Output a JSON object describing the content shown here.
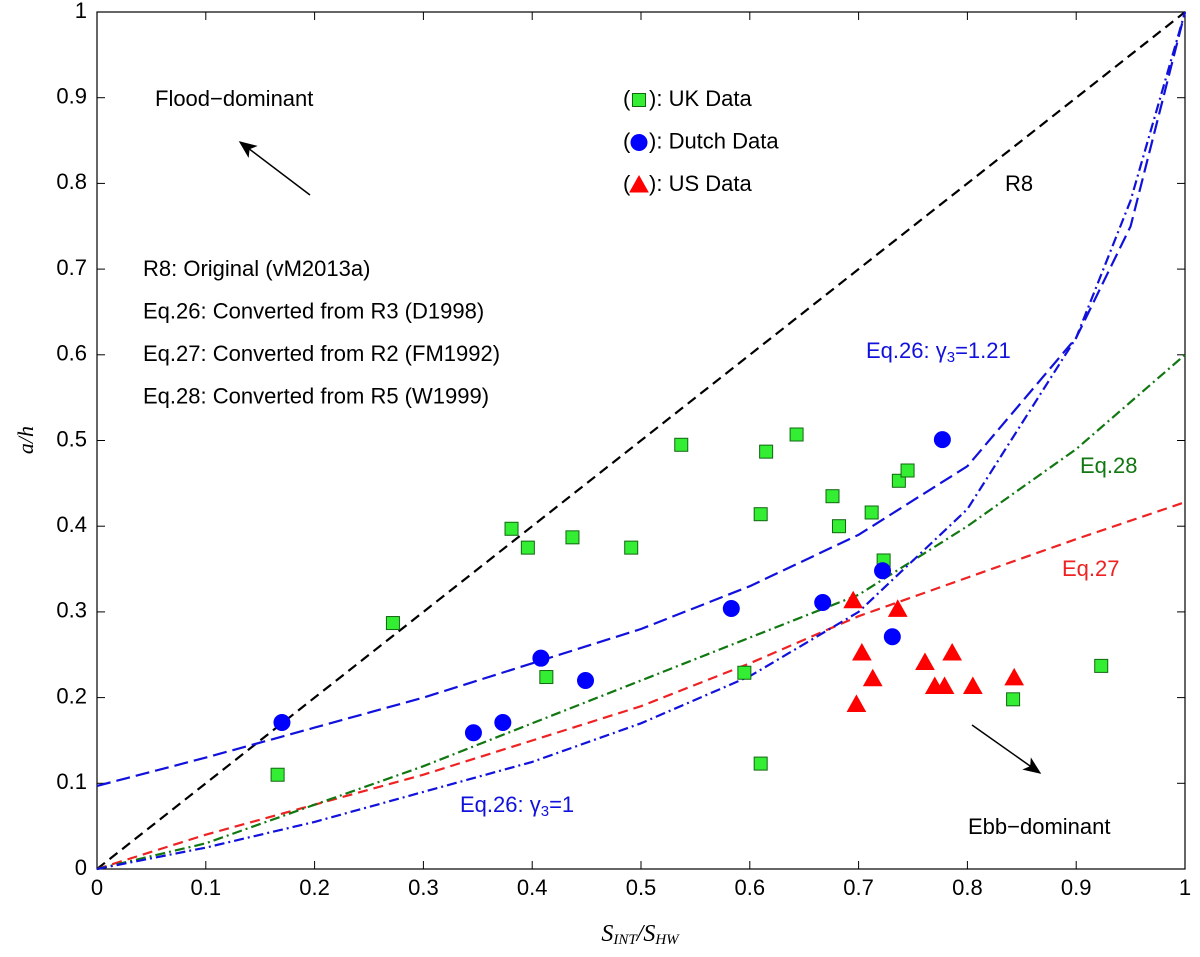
{
  "chart_data": {
    "type": "scatter",
    "xlabel": [
      "S",
      "INT",
      "/S",
      "HW"
    ],
    "ylabel": "a/h",
    "xlim": [
      0,
      1
    ],
    "ylim": [
      0,
      1
    ],
    "xticks": [
      0,
      0.1,
      0.2,
      0.3,
      0.4,
      0.5,
      0.6,
      0.7,
      0.8,
      0.9,
      1
    ],
    "yticks": [
      0,
      0.1,
      0.2,
      0.3,
      0.4,
      0.5,
      0.6,
      0.7,
      0.8,
      0.9,
      1
    ],
    "legend_brackets": [
      "(",
      "): "
    ],
    "series": [
      {
        "name": "UK Data",
        "marker": "square",
        "color": "#33ee33",
        "x": [
          0.166,
          0.272,
          0.381,
          0.396,
          0.437,
          0.491,
          0.537,
          0.615,
          0.643,
          0.676,
          0.682,
          0.712,
          0.737,
          0.745,
          0.61,
          0.723,
          0.413,
          0.595,
          0.61,
          0.842,
          0.923
        ],
        "values": [
          0.11,
          0.287,
          0.397,
          0.375,
          0.387,
          0.375,
          0.495,
          0.487,
          0.507,
          0.435,
          0.4,
          0.416,
          0.453,
          0.465,
          0.414,
          0.36,
          0.224,
          0.229,
          0.123,
          0.198,
          0.237
        ]
      },
      {
        "name": "Dutch Data",
        "marker": "circle",
        "color": "#0000ff",
        "x": [
          0.17,
          0.346,
          0.373,
          0.408,
          0.449,
          0.583,
          0.667,
          0.722,
          0.731,
          0.777
        ],
        "values": [
          0.171,
          0.159,
          0.171,
          0.246,
          0.22,
          0.304,
          0.311,
          0.348,
          0.271,
          0.501
        ]
      },
      {
        "name": "US Data",
        "marker": "triangle",
        "color": "#ff0000",
        "x": [
          0.695,
          0.736,
          0.703,
          0.713,
          0.698,
          0.761,
          0.786,
          0.77,
          0.779,
          0.805,
          0.843
        ],
        "values": [
          0.313,
          0.303,
          0.252,
          0.222,
          0.192,
          0.241,
          0.252,
          0.213,
          0.213,
          0.213,
          0.223
        ]
      }
    ],
    "lines": [
      {
        "color": "#000000",
        "dash": "10 6",
        "x": [
          0,
          1
        ],
        "values": [
          0,
          1
        ]
      },
      {
        "color": "#ee2222",
        "dash": "10 6",
        "x": [
          0,
          0.1,
          0.2,
          0.3,
          0.4,
          0.5,
          0.6,
          0.7,
          0.8,
          0.9,
          1
        ],
        "values": [
          0,
          0.04,
          0.075,
          0.11,
          0.15,
          0.19,
          0.24,
          0.295,
          0.34,
          0.385,
          0.428
        ]
      },
      {
        "color": "#117711",
        "dash": "10 4 2 4",
        "x": [
          0,
          0.1,
          0.2,
          0.3,
          0.4,
          0.5,
          0.6,
          0.7,
          0.8,
          0.9,
          1
        ],
        "values": [
          0,
          0.03,
          0.075,
          0.12,
          0.17,
          0.22,
          0.27,
          0.32,
          0.4,
          0.49,
          0.6
        ]
      },
      {
        "color": "#1111dd",
        "dash": "14 6",
        "x": [
          0,
          0.1,
          0.2,
          0.3,
          0.4,
          0.5,
          0.6,
          0.7,
          0.8,
          0.9,
          0.95,
          1
        ],
        "values": [
          0.097,
          0.13,
          0.165,
          0.2,
          0.24,
          0.28,
          0.33,
          0.39,
          0.47,
          0.62,
          0.75,
          1
        ]
      },
      {
        "color": "#1111dd",
        "dash": "10 4 2 4",
        "x": [
          0,
          0.1,
          0.2,
          0.3,
          0.4,
          0.5,
          0.6,
          0.7,
          0.8,
          0.9,
          0.95,
          1
        ],
        "values": [
          0,
          0.025,
          0.055,
          0.09,
          0.125,
          0.17,
          0.225,
          0.3,
          0.42,
          0.62,
          0.78,
          1
        ]
      }
    ],
    "annotations": [
      {
        "parts": [
          "Flood−dominant"
        ],
        "color": "#000000"
      },
      {
        "parts": [
          "Ebb−dominant"
        ],
        "color": "#000000"
      },
      {
        "parts": [
          "R8"
        ],
        "color": "#000000"
      },
      {
        "parts": [
          "Eq.28"
        ],
        "color": "#117711"
      },
      {
        "parts": [
          "Eq.27"
        ],
        "color": "#ee2222"
      },
      {
        "parts": [
          "Eq.26: γ",
          "3",
          "=1.21"
        ],
        "color": "#1111dd"
      },
      {
        "parts": [
          "Eq.26: γ",
          "3",
          "=1"
        ],
        "color": "#1111dd"
      }
    ],
    "notes": [
      "R8: Original (vM2013a)",
      "Eq.26: Converted from R3 (D1998)",
      "Eq.27: Converted from R2 (FM1992)",
      "Eq.28: Converted from R5 (W1999)"
    ]
  }
}
